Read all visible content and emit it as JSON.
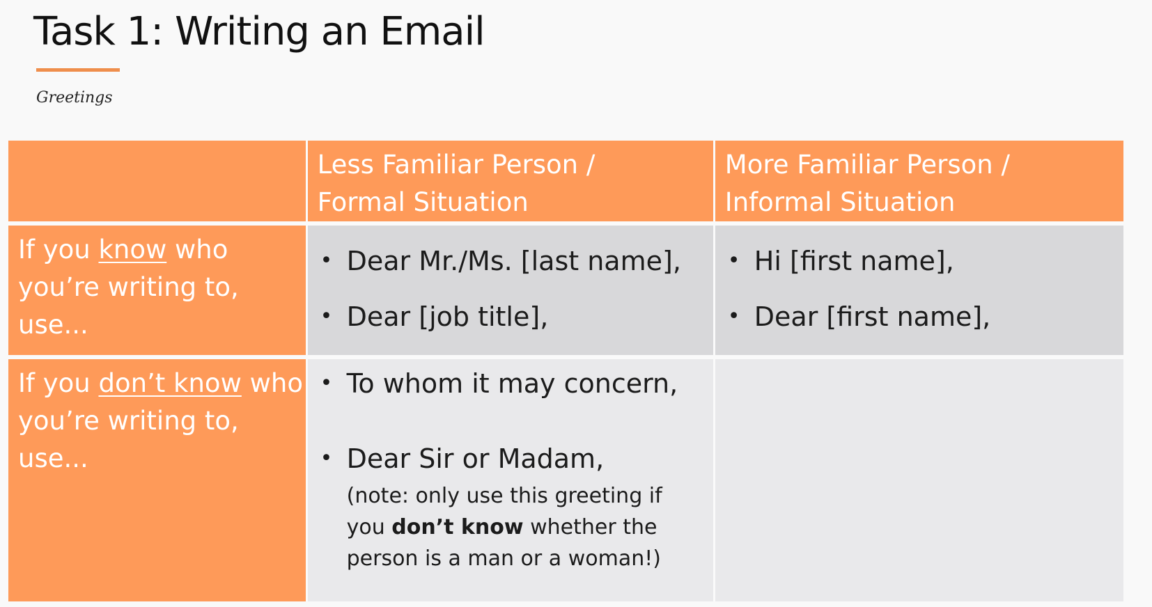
{
  "slide": {
    "title": "Task 1: Writing an Email",
    "subtitle": "Greetings",
    "accent_color": "#ef8e4c"
  },
  "table": {
    "header_color": "#fe9a59",
    "headers": {
      "formal_line1": "Less Familiar Person /",
      "formal_line2": "Formal Situation",
      "informal_line1": "More Familiar Person /",
      "informal_line2": "Informal Situation"
    },
    "row_known": {
      "label_line1_pre": "If you ",
      "label_line1_emph": "know",
      "label_line1_post": " who",
      "label_line2": "you’re writing to,",
      "label_line3": "use...",
      "formal": [
        "Dear Mr./Ms. [last name],",
        "Dear [job title],"
      ],
      "informal": [
        "Hi [first name],",
        "Dear [first name],"
      ]
    },
    "row_unknown": {
      "label_line1_pre": "If you ",
      "label_line1_emph": "don’t know",
      "label_line1_post": " who",
      "label_line2": "you’re writing to,",
      "label_line3": "use...",
      "formal": [
        "To whom it may concern,",
        "Dear Sir or Madam,"
      ],
      "note_pre": "(note: only use this greeting if you ",
      "note_bold": "don’t know",
      "note_post": " whether the person is a man or a woman!)"
    },
    "bullet_glyph": "•"
  }
}
